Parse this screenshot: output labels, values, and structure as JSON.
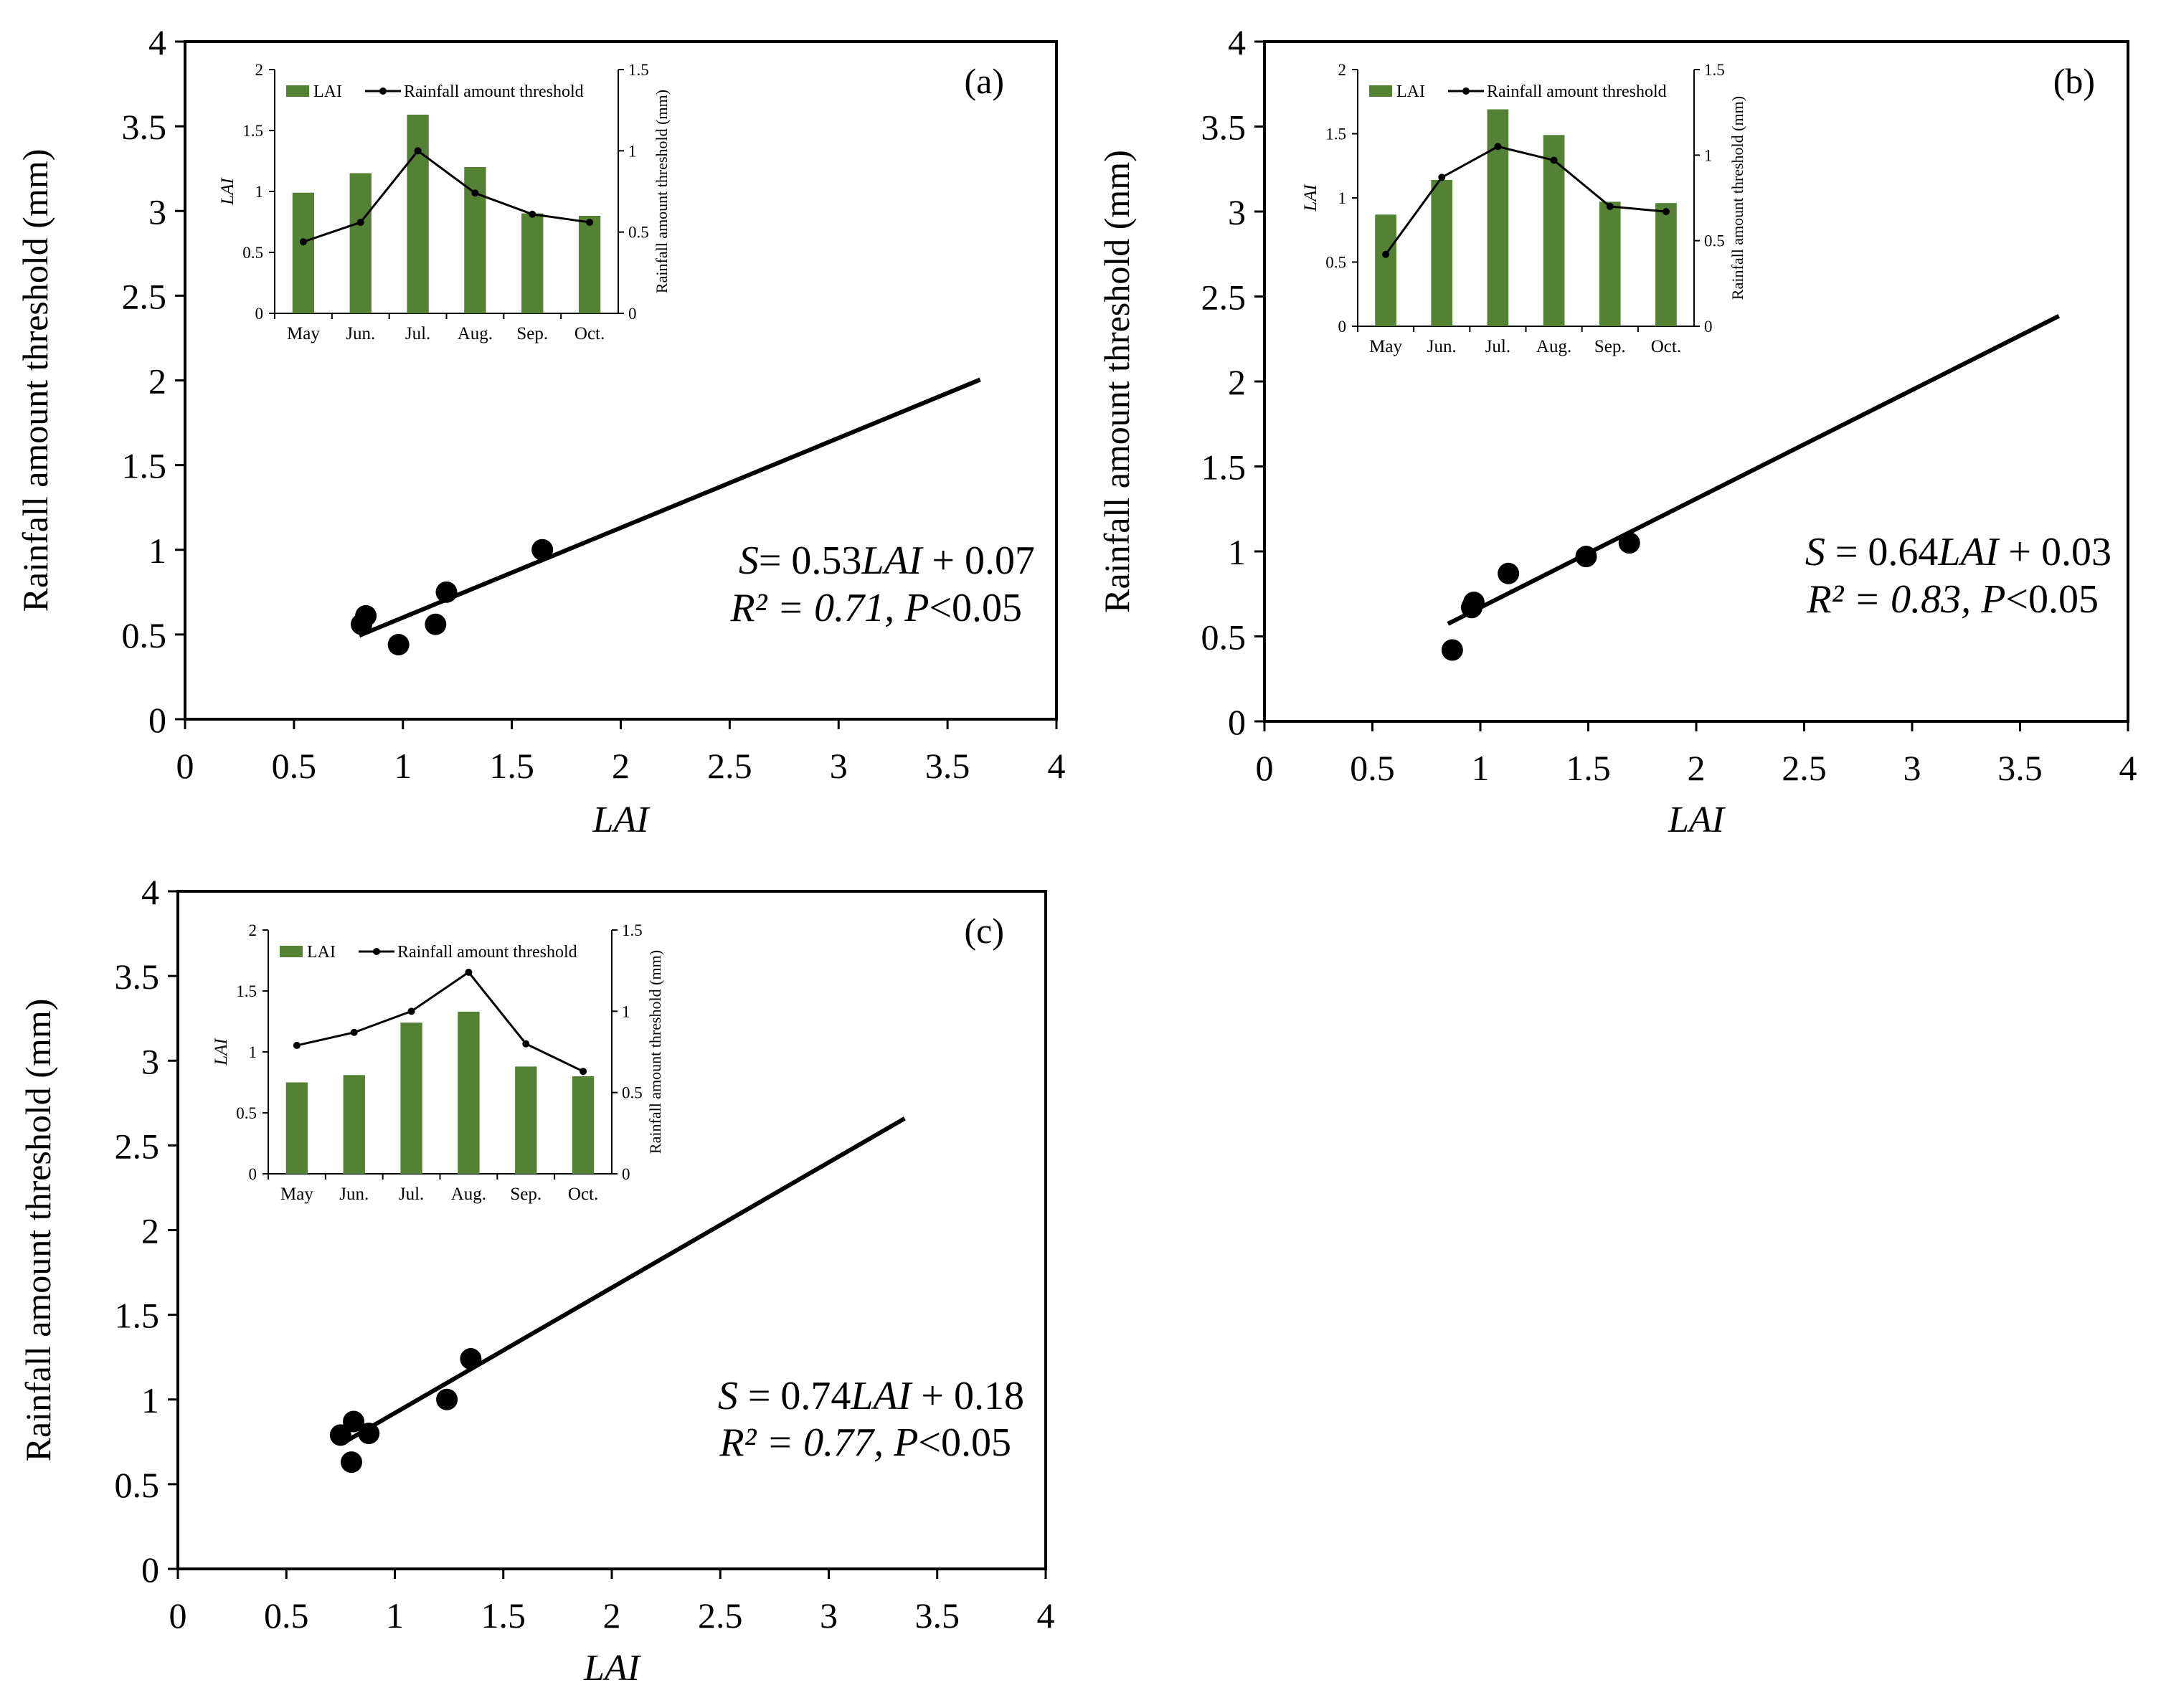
{
  "figure": {
    "common": {
      "xlabel": "LAI",
      "ylabel": "Rainfall amount threshold (mm)",
      "xlim": [
        0,
        4
      ],
      "ylim": [
        0,
        4
      ],
      "xticks": [
        "0",
        "0.5",
        "1",
        "1.5",
        "2",
        "2.5",
        "3",
        "3.5",
        "4"
      ],
      "yticks": [
        "0",
        "0.5",
        "1",
        "1.5",
        "2",
        "2.5",
        "3",
        "3.5",
        "4"
      ],
      "inset": {
        "months": [
          "May",
          "Jun.",
          "Jul.",
          "Aug.",
          "Sep.",
          "Oct."
        ],
        "left_ylabel": "LAI",
        "right_ylabel": "Rainfall amount threshold (mm)",
        "left_ylim": [
          0,
          2
        ],
        "right_ylim": [
          0,
          1.5
        ],
        "left_ticks": [
          "0",
          "0.5",
          "1",
          "1.5",
          "2"
        ],
        "right_ticks": [
          "0",
          "0.5",
          "1",
          "1.5"
        ],
        "legend_bar": "LAI",
        "legend_line": "Rainfall amount threshold",
        "bar_color": "#548235",
        "line_color": "#000000"
      }
    }
  },
  "chart_data": [
    {
      "type": "scatter",
      "panel_label": "(a)",
      "xlabel": "LAI",
      "ylabel": "Rainfall amount threshold (mm)",
      "xlim": [
        0,
        4
      ],
      "ylim": [
        0,
        4
      ],
      "points": [
        {
          "x": 0.81,
          "y": 0.56
        },
        {
          "x": 0.83,
          "y": 0.61
        },
        {
          "x": 0.98,
          "y": 0.44
        },
        {
          "x": 1.15,
          "y": 0.56
        },
        {
          "x": 1.2,
          "y": 0.75
        },
        {
          "x": 1.64,
          "y": 1.0
        }
      ],
      "fit_line": {
        "slope": 0.53,
        "intercept": 0.07,
        "x_range": [
          0.8,
          3.65
        ]
      },
      "equation": {
        "var": "S",
        "rest": "= 0.53",
        "lai": "LAI",
        "tail": " + 0.07"
      },
      "stats": {
        "r2": "R² = 0.71, ",
        "p": "P",
        "ptail": "<0.05"
      },
      "inset": {
        "lai": [
          0.99,
          1.15,
          1.63,
          1.2,
          0.82,
          0.8
        ],
        "rainfall_threshold": [
          0.44,
          0.56,
          1.0,
          0.74,
          0.61,
          0.56
        ]
      }
    },
    {
      "type": "scatter",
      "panel_label": "(b)",
      "xlabel": "LAI",
      "ylabel": "Rainfall amount threshold (mm)",
      "xlim": [
        0,
        4
      ],
      "ylim": [
        0,
        4
      ],
      "points": [
        {
          "x": 0.87,
          "y": 0.42
        },
        {
          "x": 0.96,
          "y": 0.67
        },
        {
          "x": 0.97,
          "y": 0.7
        },
        {
          "x": 1.13,
          "y": 0.87
        },
        {
          "x": 1.49,
          "y": 0.97
        },
        {
          "x": 1.69,
          "y": 1.05
        }
      ],
      "fit_line": {
        "slope": 0.64,
        "intercept": 0.03,
        "x_range": [
          0.85,
          3.68
        ]
      },
      "equation": {
        "var": "S",
        "rest": " = 0.64",
        "lai": "LAI",
        "tail": " + 0.03"
      },
      "stats": {
        "r2": "R² = 0.83, ",
        "p": "P",
        "ptail": "<0.05"
      },
      "inset": {
        "lai": [
          0.87,
          1.14,
          1.69,
          1.49,
          0.97,
          0.96
        ],
        "rainfall_threshold": [
          0.42,
          0.87,
          1.05,
          0.97,
          0.7,
          0.67
        ]
      }
    },
    {
      "type": "scatter",
      "panel_label": "(c)",
      "xlabel": "LAI",
      "ylabel": "Rainfall amount threshold (mm)",
      "xlim": [
        0,
        4
      ],
      "ylim": [
        0,
        4
      ],
      "points": [
        {
          "x": 0.75,
          "y": 0.79
        },
        {
          "x": 0.8,
          "y": 0.63
        },
        {
          "x": 0.81,
          "y": 0.87
        },
        {
          "x": 0.88,
          "y": 0.8
        },
        {
          "x": 1.24,
          "y": 1.0
        },
        {
          "x": 1.35,
          "y": 1.24
        }
      ],
      "fit_line": {
        "slope": 0.74,
        "intercept": 0.18,
        "x_range": [
          0.78,
          3.35
        ]
      },
      "equation": {
        "var": "S",
        "rest": " = 0.74",
        "lai": "LAI",
        "tail": " + 0.18"
      },
      "stats": {
        "r2": "R² = 0.77, ",
        "p": "P",
        "ptail": "<0.05"
      },
      "inset": {
        "lai": [
          0.75,
          0.81,
          1.24,
          1.33,
          0.88,
          0.8
        ],
        "rainfall_threshold": [
          0.79,
          0.87,
          1.0,
          1.24,
          0.8,
          0.63
        ]
      }
    }
  ]
}
